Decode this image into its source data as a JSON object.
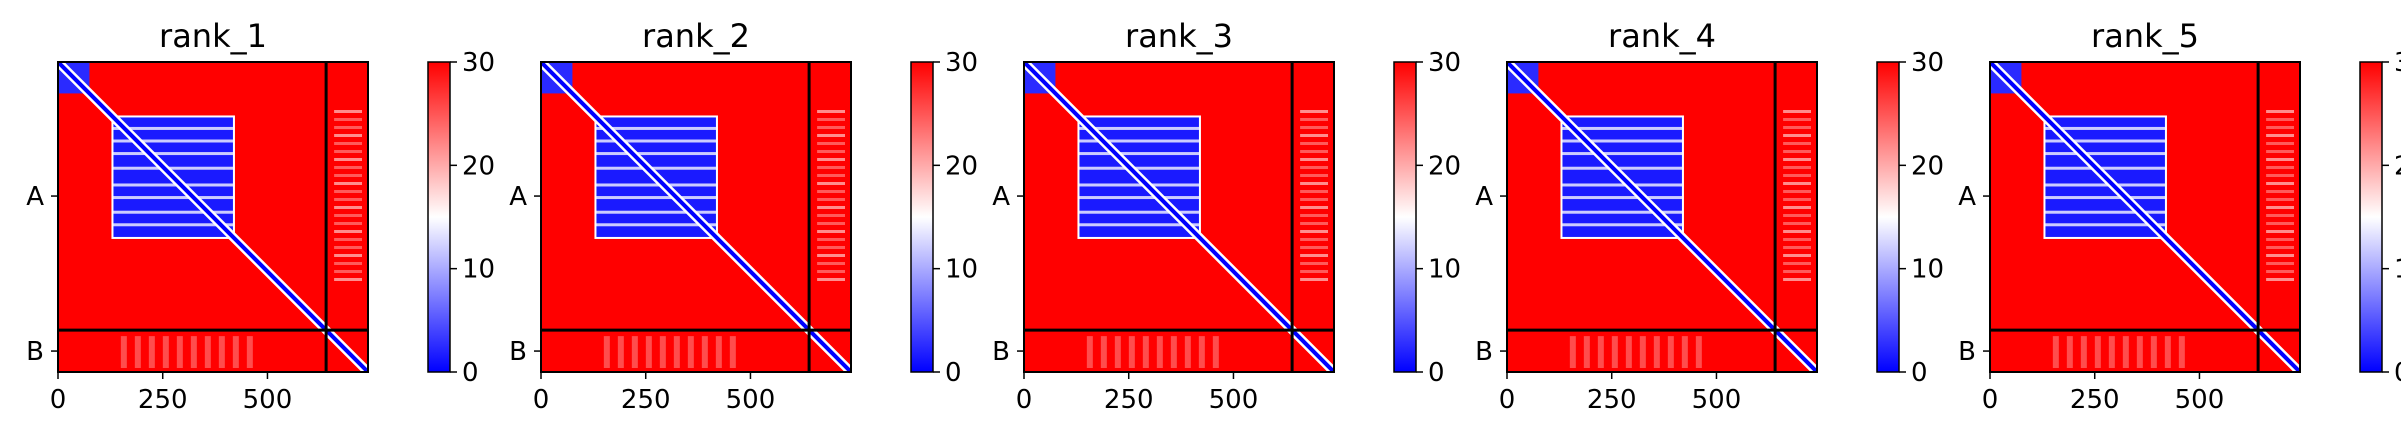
{
  "chart_data": {
    "type": "heatmap",
    "colormap": {
      "low": "#0000ff",
      "mid": "#ffffff",
      "high": "#ff0000"
    },
    "colorbar": {
      "range": [
        0,
        30
      ],
      "ticks": [
        "0",
        "10",
        "20",
        "30"
      ]
    },
    "x_ticks": [
      {
        "value": 0,
        "label": "0"
      },
      {
        "value": 250,
        "label": "250"
      },
      {
        "value": 500,
        "label": "500"
      }
    ],
    "x_range": [
      0,
      740
    ],
    "chains": [
      {
        "label": "A",
        "start": 0,
        "end": 640
      },
      {
        "label": "B",
        "start": 640,
        "end": 740
      }
    ],
    "panels": [
      {
        "title": "rank_1"
      },
      {
        "title": "rank_2"
      },
      {
        "title": "rank_3"
      },
      {
        "title": "rank_4"
      },
      {
        "title": "rank_5"
      }
    ]
  }
}
